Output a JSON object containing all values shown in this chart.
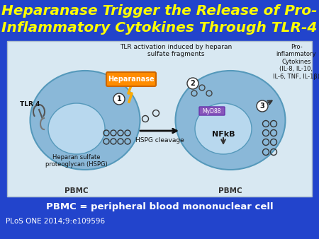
{
  "title_line1": "Heparanase Trigger the Release of Pro-",
  "title_line2": "Inflammatory Cytokines Through TLR-4",
  "title_color": "#FFFF00",
  "title_fontsize": 14.5,
  "bg_color": "#2244CC",
  "panel_bg": "#D8E8F2",
  "panel_border": "#AABBCC",
  "footnote": "PLoS ONE 2014;9:e109596",
  "footnote_color": "#FFFFFF",
  "footnote_fontsize": 7.5,
  "pbmc_label": "PBMC = peripheral blood mononuclear cell",
  "pbmc_label_color": "#FFFFFF",
  "pbmc_label_fontsize": 9.5,
  "heparanase_box_color": "#FF8C00",
  "diagram": {
    "tlr_activation": "TLR activation induced by heparan\nsulfate fragments",
    "pro_inflammatory": "Pro-\ninflammatory\nCytokines\n(IL-8, IL-10,\nIL-6, TNF, IL-1β)",
    "hspg": "Heparan sulfate\nproteoglycan (HSPG)",
    "hspg_cleavage": "HSPG cleavage",
    "nfkb": "NFkB",
    "myd88": "MyD88",
    "tlr4": "TLR 4",
    "pbmc1": "PBMC",
    "pbmc2": "PBMC",
    "heparanase": "Heparanase"
  }
}
